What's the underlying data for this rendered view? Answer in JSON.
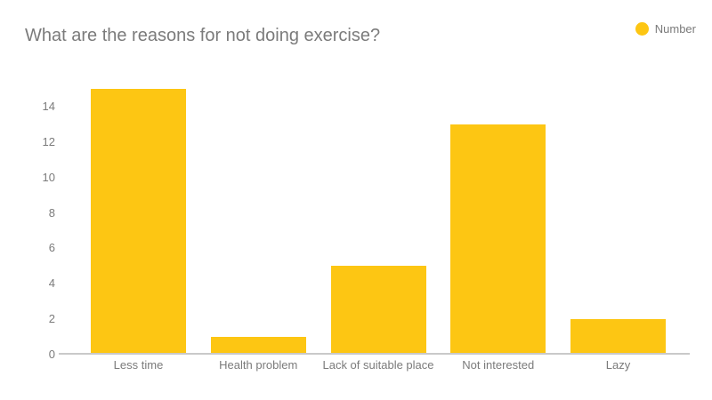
{
  "title": "What are the reasons for not doing exercise?",
  "legend": {
    "label": "Number"
  },
  "colors": {
    "bar": "#FDC613",
    "text": "#7B7B7B",
    "axis_line": "#C9C9C9",
    "background": "#FFFFFF"
  },
  "chart_data": {
    "type": "bar",
    "title": "What are the reasons for not doing exercise?",
    "categories": [
      "Less time",
      "Health problem",
      "Lack of suitable place",
      "Not interested",
      "Lazy"
    ],
    "series": [
      {
        "name": "Number",
        "values": [
          15,
          1,
          5,
          13,
          2
        ]
      }
    ],
    "xlabel": "",
    "ylabel": "",
    "yticks": [
      0,
      2,
      4,
      6,
      8,
      10,
      12,
      14
    ],
    "ylim": [
      0,
      15.7
    ],
    "grid": false,
    "legend_position": "top-right"
  }
}
